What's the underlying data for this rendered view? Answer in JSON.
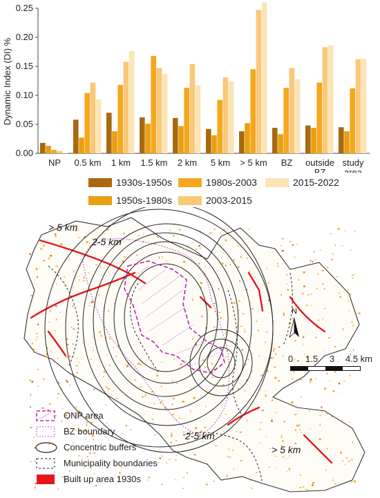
{
  "chart_data": {
    "type": "bar",
    "ylabel": "Dynamic Index (DI) %",
    "ylim": [
      0,
      0.25
    ],
    "yticks": [
      "0.00",
      "0.05",
      "0.10",
      "0.15",
      "0.20",
      "0.25"
    ],
    "categories": [
      "NP",
      "0.5 km",
      "1 km",
      "1.5 km",
      "2 km",
      "5 km",
      "> 5 km",
      "BZ",
      "outside BZ",
      "study area"
    ],
    "category_lines": [
      [
        "NP"
      ],
      [
        "0.5 km"
      ],
      [
        "1 km"
      ],
      [
        "1.5 km"
      ],
      [
        "2 km"
      ],
      [
        "5 km"
      ],
      [
        "> 5 km"
      ],
      [
        "BZ"
      ],
      [
        "outside",
        "BZ"
      ],
      [
        "study",
        "area"
      ]
    ],
    "series": [
      {
        "name": "1930s-1950s",
        "color": "#a8690f",
        "values": [
          0.018,
          0.058,
          0.07,
          0.062,
          0.061,
          0.042,
          0.038,
          0.044,
          0.048,
          0.045
        ]
      },
      {
        "name": "1950s-1980s",
        "color": "#e8a012",
        "values": [
          0.013,
          0.027,
          0.038,
          0.051,
          0.047,
          0.031,
          0.052,
          0.033,
          0.044,
          0.038
        ]
      },
      {
        "name": "1980s-2003",
        "color": "#f5a71e",
        "values": [
          0.006,
          0.104,
          0.118,
          0.168,
          0.113,
          0.092,
          0.145,
          0.113,
          0.122,
          0.112
        ]
      },
      {
        "name": "2003-2015",
        "color": "#fac878",
        "values": [
          0.004,
          0.122,
          0.158,
          0.147,
          0.154,
          0.131,
          0.247,
          0.147,
          0.183,
          0.162
        ]
      },
      {
        "name": "2015-2022",
        "color": "#fde4b4",
        "values": [
          0.001,
          0.093,
          0.176,
          0.137,
          0.117,
          0.124,
          0.26,
          0.128,
          0.186,
          0.163
        ]
      }
    ],
    "legend_placement": "bottom",
    "grid": false
  },
  "map": {
    "labels": {
      "gt5_top": "> 5 km",
      "b25_top": "2-5 km",
      "b25_bottom": "2-5 km",
      "gt5_bottom": "> 5 km"
    },
    "north": "N",
    "scale": {
      "ticks": [
        "0",
        "1.5",
        "3",
        "4.5 km"
      ]
    },
    "legend": [
      {
        "label": "ONP area",
        "symbol": "onp-icon"
      },
      {
        "label": "BZ boundary",
        "symbol": "bz-icon"
      },
      {
        "label": "Concentric buffers",
        "symbol": "ellipse-icon"
      },
      {
        "label": "Municipality boundaries",
        "symbol": "dashed-box-icon"
      },
      {
        "label": "Built up area 1930s",
        "symbol": "red-box-icon",
        "color": "#e8141c"
      }
    ]
  }
}
